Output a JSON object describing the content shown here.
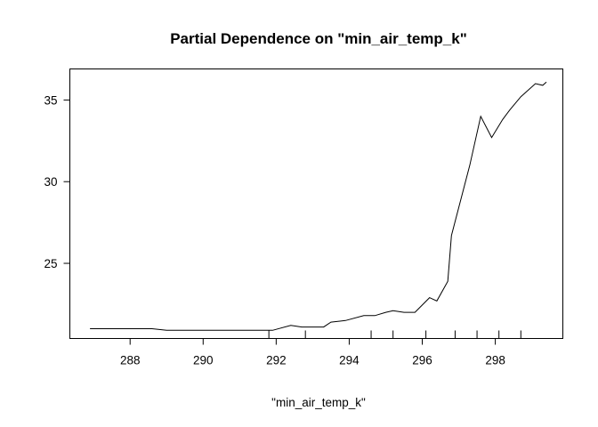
{
  "chart_data": {
    "type": "line",
    "title": "Partial Dependence on \"min_air_temp_k\"",
    "xlabel": "\"min_air_temp_k\"",
    "ylabel": "",
    "xlim": [
      286.35,
      299.85
    ],
    "ylim": [
      20.4,
      36.9
    ],
    "xticks": [
      288,
      290,
      292,
      294,
      296,
      298
    ],
    "yticks": [
      25,
      30,
      35
    ],
    "grid": false,
    "legend": "none",
    "line_color": "#000000",
    "series": [
      {
        "x": [
          286.9,
          288.6,
          289.0,
          291.9,
          292.4,
          292.7,
          293.3,
          293.5,
          293.9,
          294.4,
          294.7,
          295.0,
          295.2,
          295.5,
          295.7,
          295.8,
          296.2,
          296.4,
          296.7,
          296.8,
          297.3,
          297.6,
          297.9,
          298.2,
          298.4,
          298.7,
          299.1,
          299.3,
          299.4
        ],
        "y": [
          21.0,
          21.0,
          20.9,
          20.9,
          21.2,
          21.1,
          21.1,
          21.4,
          21.5,
          21.8,
          21.8,
          22.0,
          22.1,
          22.0,
          22.0,
          22.0,
          22.9,
          22.7,
          23.9,
          26.7,
          31.0,
          34.0,
          32.7,
          33.8,
          34.4,
          35.2,
          36.0,
          35.9,
          36.1
        ]
      }
    ],
    "rug": [
      291.8,
      292.8,
      294.6,
      295.2,
      296.1,
      296.9,
      297.5,
      298.1,
      298.7
    ]
  }
}
